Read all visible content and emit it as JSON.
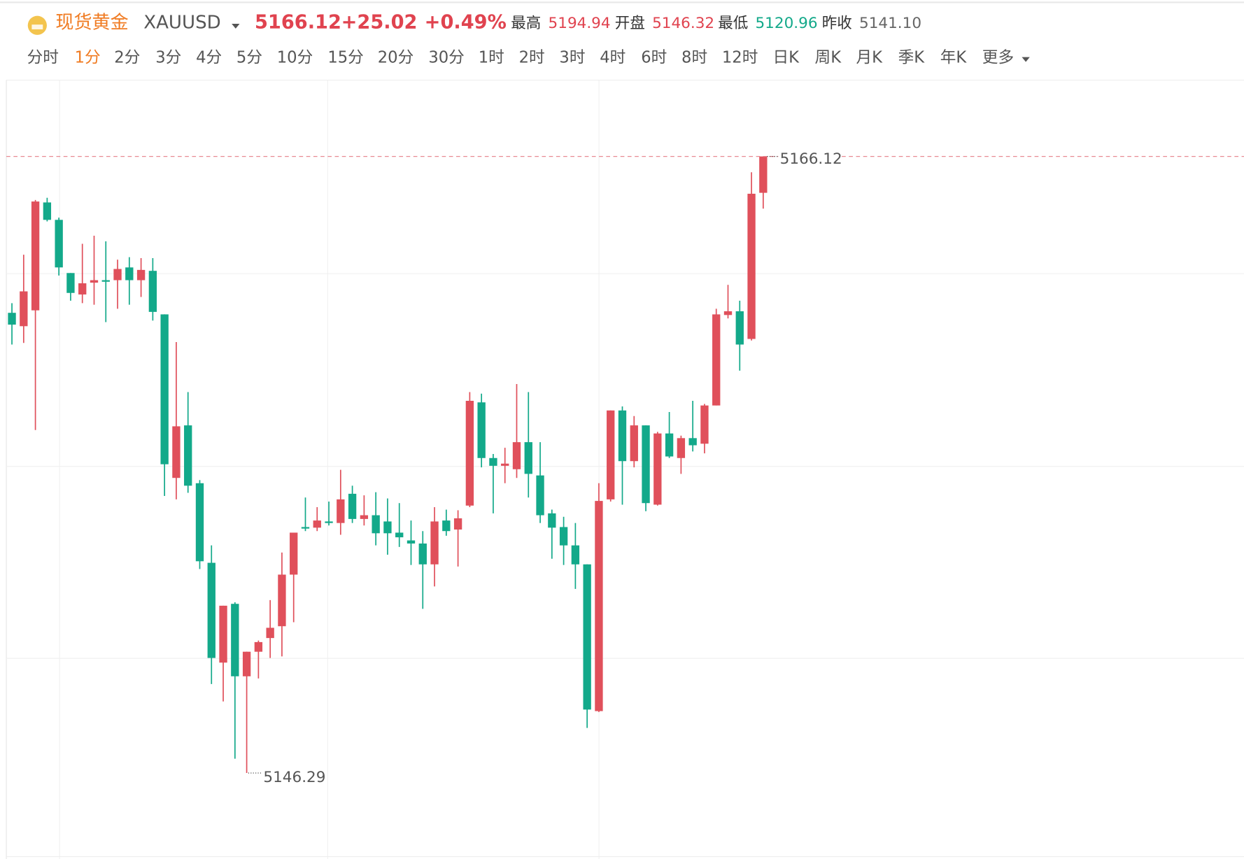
{
  "header": {
    "name": "现货黄金",
    "symbol": "XAUUSD",
    "price": "5166.12",
    "change": "+25.02",
    "change_pct": "+0.49%",
    "stats": [
      {
        "label": "最高",
        "value": "5194.94"
      },
      {
        "label": "开盘",
        "value": "5146.32"
      },
      {
        "label": "最低",
        "value": "5120.96"
      },
      {
        "label": "昨收",
        "value": "5141.10"
      }
    ]
  },
  "periods": [
    "分时",
    "1分",
    "2分",
    "3分",
    "4分",
    "5分",
    "10分",
    "15分",
    "20分",
    "30分",
    "1时",
    "2时",
    "3时",
    "4时",
    "6时",
    "8时",
    "12时",
    "日K",
    "周K",
    "月K",
    "季K",
    "年K",
    "更多"
  ],
  "active_period": 1,
  "chart_data": {
    "type": "candlestick",
    "up_color": "#e0505b",
    "down_color": "#13a98a",
    "ylim": [
      5143.6,
      5168.6
    ],
    "open": [
      5161.09,
      5160.66,
      5161.17,
      5164.64,
      5164.08,
      5162.37,
      5161.68,
      5162.06,
      5162.14,
      5162.14,
      5162.55,
      5162.14,
      5162.44,
      5161.04,
      5155.78,
      5157.47,
      5155.61,
      5153.05,
      5149.84,
      5151.73,
      5149.4,
      5150.19,
      5150.63,
      5151.01,
      5152.67,
      5154.2,
      5154.18,
      5154.38,
      5154.33,
      5155.27,
      5154.46,
      5154.58,
      5154.38,
      5154.02,
      5153.77,
      5153.67,
      5153.0,
      5154.41,
      5154.12,
      5154.89,
      5158.21,
      5156.42,
      5156.17,
      5156.06,
      5156.93,
      5155.86,
      5154.64,
      5154.2,
      5153.61,
      5153.0,
      5148.28,
      5155.09,
      5157.95,
      5156.32,
      5157.47,
      5154.92,
      5157.21,
      5156.42,
      5157.06,
      5156.88,
      5158.11,
      5161.02,
      5161.14,
      5160.25,
      5164.95
    ],
    "high": [
      5161.4,
      5162.96,
      5164.72,
      5164.79,
      5164.15,
      5162.37,
      5163.31,
      5163.57,
      5163.39,
      5162.8,
      5162.88,
      5162.85,
      5162.85,
      5161.04,
      5160.15,
      5158.54,
      5155.71,
      5153.61,
      5151.67,
      5151.78,
      5150.19,
      5150.55,
      5151.85,
      5153.38,
      5154.02,
      5155.15,
      5154.84,
      5155.02,
      5156.04,
      5155.53,
      5155.22,
      5155.32,
      5155.12,
      5154.97,
      5154.41,
      5154.07,
      5154.84,
      5154.76,
      5154.74,
      5158.54,
      5158.49,
      5156.55,
      5156.75,
      5158.8,
      5158.54,
      5156.93,
      5154.76,
      5154.53,
      5154.33,
      5153.0,
      5155.61,
      5157.95,
      5158.08,
      5157.77,
      5157.47,
      5157.26,
      5157.9,
      5157.14,
      5158.26,
      5158.16,
      5161.22,
      5161.99,
      5161.48,
      5165.61,
      5166.12
    ],
    "low": [
      5160.07,
      5160.12,
      5157.32,
      5164.03,
      5162.29,
      5161.48,
      5161.4,
      5161.35,
      5160.79,
      5161.22,
      5161.35,
      5161.6,
      5160.84,
      5155.2,
      5155.09,
      5155.3,
      5152.85,
      5149.15,
      5148.59,
      5146.75,
      5146.29,
      5149.33,
      5149.99,
      5150.04,
      5151.14,
      5154.07,
      5154.07,
      5154.25,
      5153.95,
      5154.33,
      5154.25,
      5153.61,
      5153.31,
      5153.56,
      5152.98,
      5151.57,
      5152.29,
      5153.92,
      5152.93,
      5154.84,
      5156.12,
      5154.64,
      5155.61,
      5155.78,
      5155.15,
      5154.33,
      5153.18,
      5152.98,
      5152.21,
      5147.74,
      5148.25,
      5155.02,
      5154.92,
      5156.12,
      5154.71,
      5154.89,
      5156.42,
      5155.91,
      5156.63,
      5156.57,
      5158.11,
      5160.91,
      5159.23,
      5160.2,
      5164.44
    ],
    "close": [
      5160.71,
      5161.78,
      5164.67,
      5164.08,
      5162.55,
      5161.73,
      5162.04,
      5162.14,
      5162.09,
      5162.5,
      5162.14,
      5162.47,
      5161.12,
      5156.22,
      5157.44,
      5155.53,
      5153.1,
      5149.99,
      5151.67,
      5149.4,
      5150.19,
      5150.5,
      5150.96,
      5152.67,
      5154.02,
      5154.15,
      5154.41,
      5154.33,
      5155.09,
      5154.46,
      5154.58,
      5154.0,
      5154.0,
      5153.87,
      5153.67,
      5153.0,
      5154.38,
      5154.07,
      5154.48,
      5158.26,
      5156.42,
      5156.17,
      5156.24,
      5156.93,
      5155.91,
      5154.58,
      5154.18,
      5153.61,
      5153.0,
      5148.33,
      5155.04,
      5157.95,
      5156.32,
      5157.47,
      5154.97,
      5157.21,
      5156.47,
      5157.06,
      5156.83,
      5158.11,
      5161.04,
      5161.14,
      5160.07,
      5164.92,
      5166.12
    ]
  }
}
